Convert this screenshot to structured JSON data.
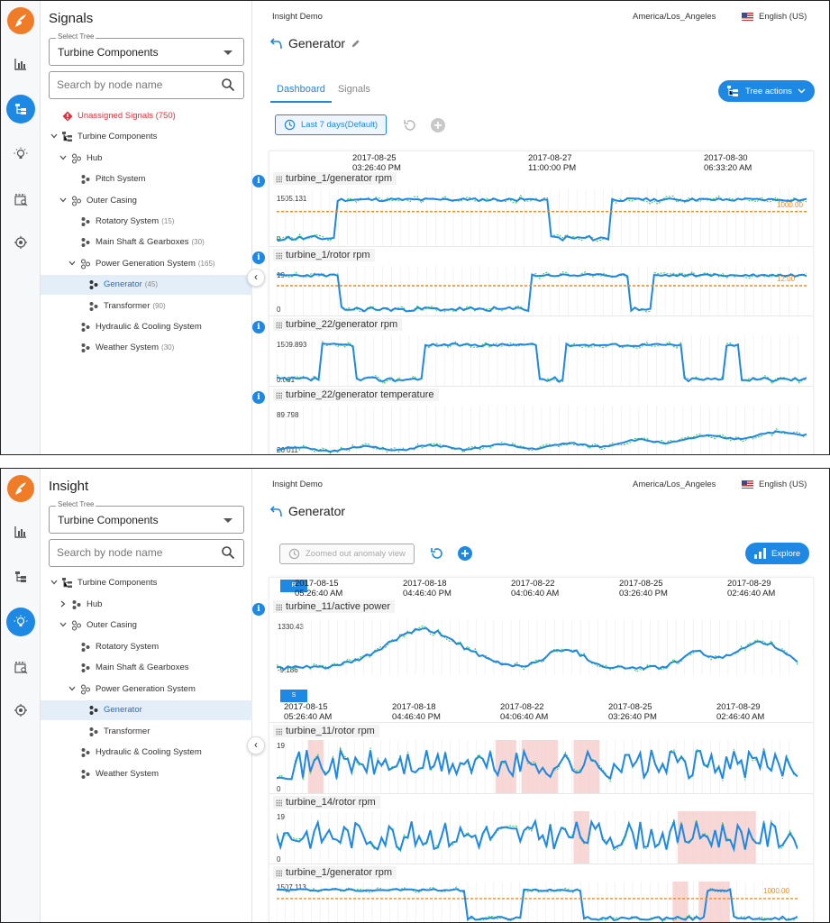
{
  "panel1": {
    "tree": {
      "title": "Signals",
      "select_label": "Select Tree",
      "select_value": "Turbine Components",
      "search_placeholder": "Search by node name",
      "nodes": [
        {
          "label": "Unassigned Signals (750)",
          "count": ""
        },
        {
          "label": "Turbine Components",
          "count": ""
        },
        {
          "label": "Hub",
          "count": ""
        },
        {
          "label": "Pitch System",
          "count": ""
        },
        {
          "label": "Outer Casing",
          "count": ""
        },
        {
          "label": "Rotatory System",
          "count": "(15)"
        },
        {
          "label": "Main Shaft & Gearboxes",
          "count": "(30)"
        },
        {
          "label": "Power Generation System",
          "count": "(165)"
        },
        {
          "label": "Generator",
          "count": "(45)"
        },
        {
          "label": "Transformer",
          "count": "(90)"
        },
        {
          "label": "Hydraulic & Cooling System",
          "count": ""
        },
        {
          "label": "Weather System",
          "count": "(30)"
        }
      ]
    },
    "header": {
      "app_name": "Insight Demo",
      "timezone": "America/Los_Angeles",
      "language": "English (US)"
    },
    "page_title": "Generator",
    "tabs": [
      "Dashboard",
      "Signals"
    ],
    "tree_actions": "Tree actions",
    "range_button": "Last 7 days(Default)",
    "time_labels": [
      {
        "date": "2017-08-25",
        "time": "03:26:40 PM"
      },
      {
        "date": "2017-08-27",
        "time": "11:00:00 PM"
      },
      {
        "date": "2017-08-30",
        "time": "06:33:20 AM"
      }
    ],
    "signals": [
      {
        "name": "turbine_1/generator rpm",
        "ymax": "1505.131",
        "ymin": "0",
        "threshold": "1000.00"
      },
      {
        "name": "turbine_1/rotor rpm",
        "ymax": "19",
        "ymin": "0",
        "threshold": "12.00"
      },
      {
        "name": "turbine_22/generator rpm",
        "ymax": "1509.893",
        "ymin": "0.001",
        "threshold": ""
      },
      {
        "name": "turbine_22/generator temperature",
        "ymax": "89.798",
        "ymin": "26.011",
        "threshold": ""
      }
    ]
  },
  "panel2": {
    "tree": {
      "title": "Insight",
      "select_label": "Select Tree",
      "select_value": "Turbine Components",
      "search_placeholder": "Search by node name",
      "nodes": [
        {
          "label": "Turbine Components"
        },
        {
          "label": "Hub"
        },
        {
          "label": "Outer Casing"
        },
        {
          "label": "Rotatory System"
        },
        {
          "label": "Main Shaft & Gearboxes"
        },
        {
          "label": "Power Generation System"
        },
        {
          "label": "Generator"
        },
        {
          "label": "Transformer"
        },
        {
          "label": "Hydraulic & Cooling System"
        },
        {
          "label": "Weather System"
        }
      ]
    },
    "header": {
      "app_name": "Insight Demo",
      "timezone": "America/Los_Angeles",
      "language": "English (US)"
    },
    "page_title": "Generator",
    "range_button": "Zoomed out anomaly view",
    "explore": "Explore",
    "tag_r": "R",
    "tag_s": "S",
    "time_labels": [
      {
        "date": "2017-08-15",
        "time": "05:26:40 AM"
      },
      {
        "date": "2017-08-18",
        "time": "04:46:40 PM"
      },
      {
        "date": "2017-08-22",
        "time": "04:06:40 AM"
      },
      {
        "date": "2017-08-25",
        "time": "03:26:40 PM"
      },
      {
        "date": "2017-08-29",
        "time": "02:46:40 AM"
      }
    ],
    "signals": [
      {
        "name": "turbine_11/active power",
        "ymax": "1330.43",
        "ymin": "-9.186",
        "threshold": ""
      },
      {
        "name": "turbine_11/rotor rpm",
        "ymax": "19",
        "ymin": "0",
        "threshold": ""
      },
      {
        "name": "turbine_14/rotor rpm",
        "ymax": "19",
        "ymin": "0",
        "threshold": ""
      },
      {
        "name": "turbine_1/generator rpm",
        "ymax": "1507.113",
        "ymin": "",
        "threshold": "1000.00"
      }
    ]
  },
  "colors": {
    "accent": "#1e88e5",
    "brand": "#f07c28",
    "series": "#1e88e5",
    "aux_series": "#2ecc40",
    "threshold": "#f08a1c",
    "anomaly": "#f5c6c6",
    "error": "#e0303c"
  }
}
